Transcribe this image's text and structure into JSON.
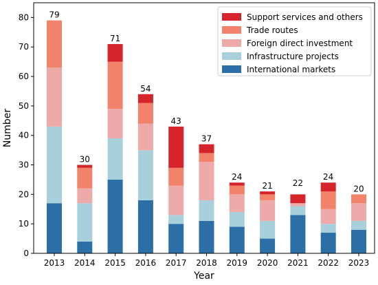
{
  "chart_data": {
    "type": "bar",
    "stacked": true,
    "title": "",
    "xlabel": "Year",
    "ylabel": "Number",
    "ylim": [
      0,
      85
    ],
    "yticks": [
      0,
      10,
      20,
      30,
      40,
      50,
      60,
      70,
      80
    ],
    "grid": false,
    "legend_position": "top-right",
    "categories": [
      "2013",
      "2014",
      "2015",
      "2016",
      "2017",
      "2018",
      "2019",
      "2020",
      "2021",
      "2022",
      "2023"
    ],
    "totals": [
      79,
      30,
      71,
      54,
      43,
      37,
      24,
      21,
      22,
      24,
      20
    ],
    "series": [
      {
        "name": "International markets",
        "color": "#2b6fa6",
        "values": [
          17,
          4,
          25,
          18,
          10,
          11,
          9,
          5,
          13,
          7,
          8
        ]
      },
      {
        "name": "Infrastructure projects",
        "color": "#a7cfdc",
        "values": [
          26,
          13,
          14,
          17,
          3,
          7,
          5,
          6,
          3,
          3,
          3
        ]
      },
      {
        "name": "Foreign direct investment",
        "color": "#eeaaa9",
        "values": [
          20,
          5,
          10,
          9,
          10,
          13,
          6,
          7,
          1,
          5,
          6
        ]
      },
      {
        "name": "Trade routes",
        "color": "#f3826a",
        "values": [
          16,
          7,
          16,
          7,
          6,
          3,
          3,
          2,
          0,
          6,
          3
        ]
      },
      {
        "name": "Support services and others",
        "color": "#d5242c",
        "values": [
          0,
          1,
          6,
          3,
          14,
          3,
          1,
          1,
          3,
          3,
          0
        ]
      }
    ]
  }
}
